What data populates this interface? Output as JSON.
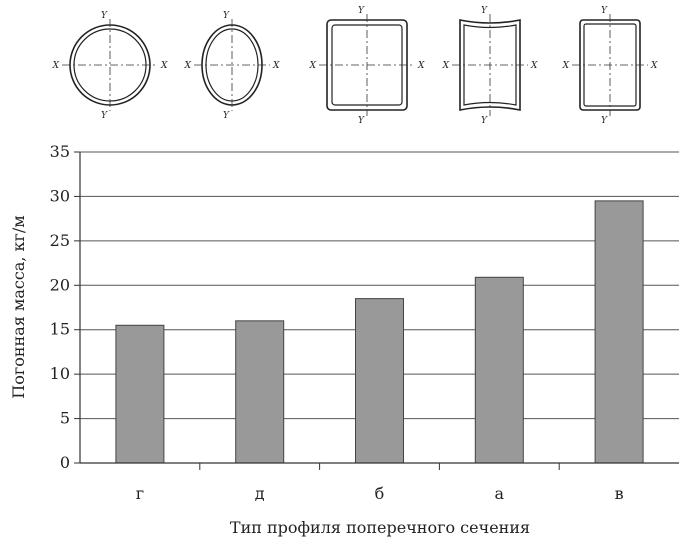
{
  "chart_data": {
    "type": "bar",
    "categories": [
      "г",
      "д",
      "б",
      "а",
      "в"
    ],
    "values": [
      15.5,
      16.0,
      18.5,
      20.9,
      29.5
    ],
    "xlabel": "Тип профиля поперечного сечения",
    "ylabel": "Погонная масса, кг/м",
    "ylim": [
      0,
      35
    ],
    "yticks": [
      0,
      5,
      10,
      15,
      20,
      25,
      30,
      35
    ],
    "grid": true,
    "bar_color": "#999999",
    "profile_diagrams": [
      {
        "category": "г",
        "shape": "circle",
        "axis_x": "X",
        "axis_y": "Y"
      },
      {
        "category": "д",
        "shape": "oval",
        "axis_x": "X",
        "axis_y": "Y"
      },
      {
        "category": "б",
        "shape": "square",
        "axis_x": "X",
        "axis_y": "Y"
      },
      {
        "category": "а",
        "shape": "square-concave",
        "axis_x": "X",
        "axis_y": "Y"
      },
      {
        "category": "в",
        "shape": "rectangle",
        "axis_x": "X",
        "axis_y": "Y"
      }
    ]
  }
}
